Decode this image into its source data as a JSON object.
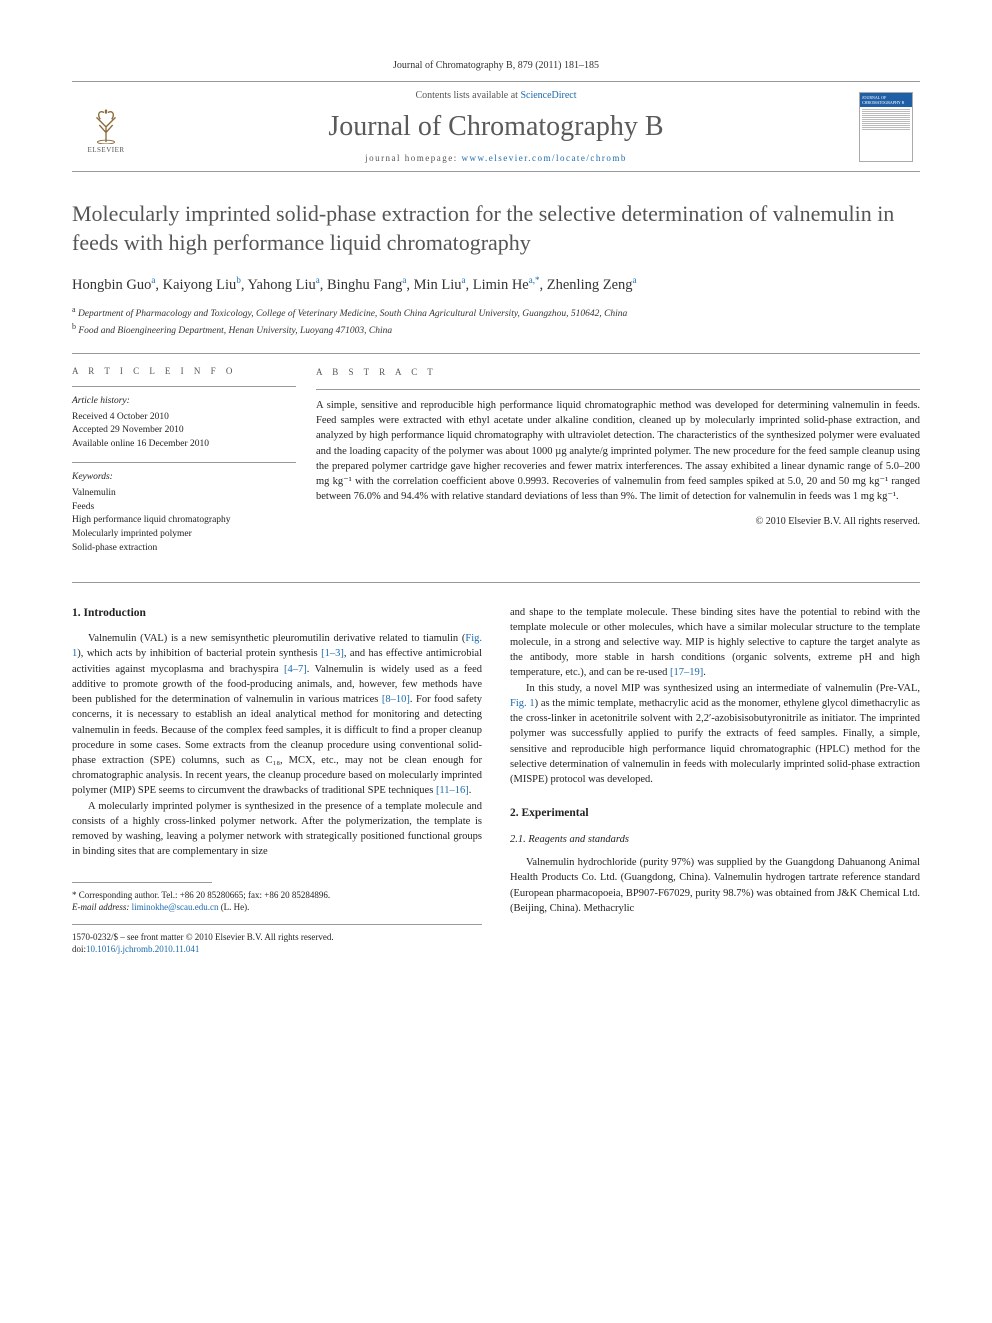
{
  "header": {
    "citation": "Journal of Chromatography B, 879 (2011) 181–185",
    "contents_prefix": "Contents lists available at ",
    "contents_link": "ScienceDirect",
    "journal_title": "Journal of Chromatography B",
    "homepage_prefix": "journal homepage: ",
    "homepage_url": "www.elsevier.com/locate/chromb",
    "publisher": "ELSEVIER",
    "cover_label": "JOURNAL OF CHROMATOGRAPHY B"
  },
  "article": {
    "title": "Molecularly imprinted solid-phase extraction for the selective determination of valnemulin in feeds with high performance liquid chromatography",
    "authors_html": "Hongbin Guo<sup>a</sup>, Kaiyong Liu<sup>b</sup>, Yahong Liu<sup>a</sup>, Binghu Fang<sup>a</sup>, Min Liu<sup>a</sup>, Limin He<sup>a,*</sup>, Zhenling Zeng<sup>a</sup>",
    "affiliations": [
      {
        "sup": "a",
        "text": "Department of Pharmacology and Toxicology, College of Veterinary Medicine, South China Agricultural University, Guangzhou, 510642, China"
      },
      {
        "sup": "b",
        "text": "Food and Bioengineering Department, Henan University, Luoyang 471003, China"
      }
    ]
  },
  "meta": {
    "info_head": "A R T I C L E   I N F O",
    "history_label": "Article history:",
    "history": [
      "Received 4 October 2010",
      "Accepted 29 November 2010",
      "Available online 16 December 2010"
    ],
    "keywords_label": "Keywords:",
    "keywords": [
      "Valnemulin",
      "Feeds",
      "High performance liquid chromatography",
      "Molecularly imprinted polymer",
      "Solid-phase extraction"
    ]
  },
  "abstract": {
    "head": "A B S T R A C T",
    "text": "A simple, sensitive and reproducible high performance liquid chromatographic method was developed for determining valnemulin in feeds. Feed samples were extracted with ethyl acetate under alkaline condition, cleaned up by molecularly imprinted solid-phase extraction, and analyzed by high performance liquid chromatography with ultraviolet detection. The characteristics of the synthesized polymer were evaluated and the loading capacity of the polymer was about 1000 µg analyte/g imprinted polymer. The new procedure for the feed sample cleanup using the prepared polymer cartridge gave higher recoveries and fewer matrix interferences. The assay exhibited a linear dynamic range of 5.0–200 mg kg⁻¹ with the correlation coefficient above 0.9993. Recoveries of valnemulin from feed samples spiked at 5.0, 20 and 50 mg kg⁻¹ ranged between 76.0% and 94.4% with relative standard deviations of less than 9%. The limit of detection for valnemulin in feeds was 1 mg kg⁻¹.",
    "copyright": "© 2010 Elsevier B.V. All rights reserved."
  },
  "body": {
    "sec1_head": "1.  Introduction",
    "sec1_p1_a": "Valnemulin (VAL) is a new semisynthetic pleuromutilin derivative related to tiamulin (",
    "sec1_fig1": "Fig. 1",
    "sec1_p1_b": "), which acts by inhibition of bacterial protein synthesis ",
    "sec1_ref1": "[1–3]",
    "sec1_p1_c": ", and has effective antimicrobial activities against mycoplasma and brachyspira ",
    "sec1_ref2": "[4–7]",
    "sec1_p1_d": ". Valnemulin is widely used as a feed additive to promote growth of the food-producing animals, and, however, few methods have been published for the determination of valnemulin in various matrices ",
    "sec1_ref3": "[8–10]",
    "sec1_p1_e": ". For food safety concerns, it is necessary to establish an ideal analytical method for monitoring and detecting valnemulin in feeds. Because of the complex feed samples, it is difficult to find a proper cleanup procedure in some cases. Some extracts from the cleanup procedure using conventional solid-phase extraction (SPE) columns, such as C₁₈, MCX, etc., may not be clean enough for chromatographic analysis. In recent years, the cleanup procedure based on molecularly imprinted polymer (MIP) SPE seems to circumvent the drawbacks of traditional SPE techniques ",
    "sec1_ref4": "[11–16]",
    "sec1_p1_f": ".",
    "sec1_p2": "A molecularly imprinted polymer is synthesized in the presence of a template molecule and consists of a highly cross-linked polymer network. After the polymerization, the template is removed by washing, leaving a polymer network with strategically positioned functional groups in binding sites that are complementary in size",
    "sec1_p3_a": "and shape to the template molecule. These binding sites have the potential to rebind with the template molecule or other molecules, which have a similar molecular structure to the template molecule, in a strong and selective way. MIP is highly selective to capture the target analyte as the antibody, more stable in harsh conditions (organic solvents, extreme pH and high temperature, etc.), and can be re-used ",
    "sec1_ref5": "[17–19]",
    "sec1_p3_b": ".",
    "sec1_p4_a": "In this study, a novel MIP was synthesized using an intermediate of valnemulin (Pre-VAL, ",
    "sec1_fig1b": "Fig. 1",
    "sec1_p4_b": ") as the mimic template, methacrylic acid as the monomer, ethylene glycol dimethacrylic as the cross-linker in acetonitrile solvent with 2,2′-azobisisobutyronitrile as initiator. The imprinted polymer was successfully applied to purify the extracts of feed samples. Finally, a simple, sensitive and reproducible high performance liquid chromatographic (HPLC) method for the selective determination of valnemulin in feeds with molecularly imprinted solid-phase extraction (MISPE) protocol was developed.",
    "sec2_head": "2.  Experimental",
    "sec2_1_head": "2.1.  Reagents and standards",
    "sec2_1_p1": "Valnemulin hydrochloride (purity 97%) was supplied by the Guangdong Dahuanong Animal Health Products Co. Ltd. (Guangdong, China). Valnemulin hydrogen tartrate reference standard (European pharmacopoeia, BP907-F67029, purity 98.7%) was obtained from J&K Chemical Ltd. (Beijing, China). Methacrylic"
  },
  "footnote": {
    "corr": "* Corresponding author. Tel.: +86 20 85280665; fax: +86 20 85284896.",
    "email_label": "E-mail address: ",
    "email": "liminokhe@scau.edu.cn",
    "email_suffix": " (L. He)."
  },
  "bottom": {
    "line1": "1570-0232/$ – see front matter © 2010 Elsevier B.V. All rights reserved.",
    "doi_prefix": "doi:",
    "doi": "10.1016/j.jchromb.2010.11.041"
  },
  "colors": {
    "link": "#1b6aac",
    "gray_text": "#555",
    "rule": "#999"
  }
}
